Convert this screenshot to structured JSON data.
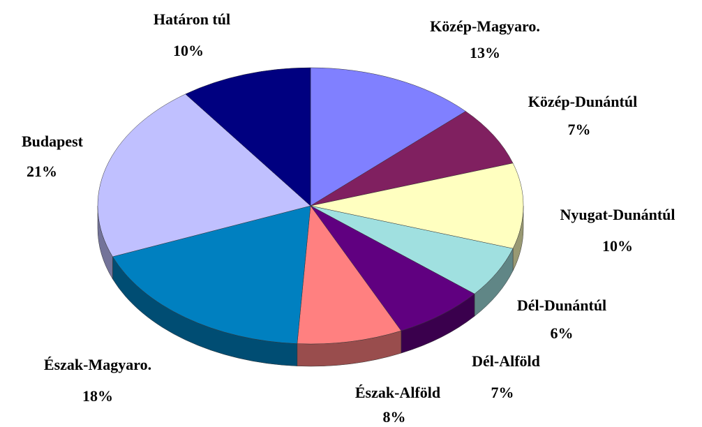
{
  "chart_data": {
    "type": "pie",
    "categories": [
      "Közép-Magyaro.",
      "Közép-Dunántúl",
      "Nyugat-Dunántúl",
      "Dél-Dunántúl",
      "Dél-Alföld",
      "Észak-Alföld",
      "Észak-Magyaro.",
      "Budapest",
      "Határon túl"
    ],
    "values": [
      13,
      7,
      10,
      6,
      7,
      8,
      18,
      21,
      10
    ],
    "value_labels": [
      "13%",
      "7%",
      "10%",
      "6%",
      "7%",
      "8%",
      "18%",
      "21%",
      "10%"
    ],
    "colors": [
      "#8080ff",
      "#802060",
      "#ffffc0",
      "#a0e0e0",
      "#600080",
      "#ff8080",
      "#0080c0",
      "#c0c0ff",
      "#000080"
    ]
  }
}
